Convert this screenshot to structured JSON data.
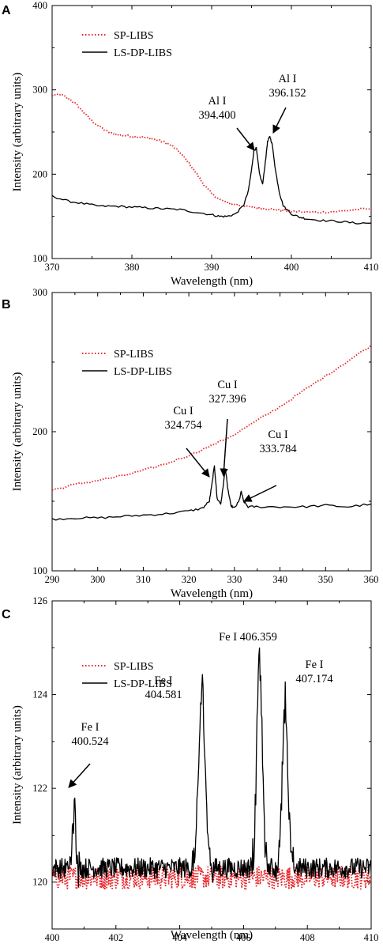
{
  "colors": {
    "sp": "#e8242a",
    "ls": "#000000"
  },
  "chart_data": [
    {
      "panel": "A",
      "type": "line",
      "xlabel": "Wavelength (nm)",
      "ylabel": "Intensity (arbitrary units)",
      "xlim": [
        370,
        410
      ],
      "ylim": [
        100,
        400
      ],
      "xticks": [
        370,
        380,
        390,
        400,
        410
      ],
      "yticks": [
        100,
        200,
        300,
        400
      ],
      "legend": "top-left",
      "series": [
        {
          "name": "SP-LIBS",
          "style": "dotted",
          "x": [
            370,
            371,
            372,
            373,
            374,
            375,
            376,
            377,
            378,
            379,
            380,
            381,
            382,
            383,
            384,
            385,
            386,
            387,
            388,
            389,
            390,
            391,
            392,
            393,
            394,
            395,
            396,
            397,
            398,
            399,
            400,
            402,
            404,
            406,
            408,
            410
          ],
          "y": [
            293,
            295,
            290,
            283,
            273,
            263,
            256,
            250,
            247,
            246,
            245,
            244,
            243,
            241,
            238,
            234,
            226,
            215,
            202,
            188,
            177,
            170,
            166,
            164,
            162,
            161,
            160,
            159,
            158,
            157,
            156,
            155,
            155,
            156,
            158,
            159
          ]
        },
        {
          "name": "LS-DP-LIBS",
          "style": "solid",
          "x": [
            370,
            372,
            374,
            376,
            378,
            380,
            382,
            384,
            386,
            388,
            390,
            391,
            392,
            393,
            394,
            394.6,
            395.0,
            395.3,
            395.6,
            396.0,
            396.4,
            396.8,
            397.0,
            397.3,
            397.6,
            398.0,
            398.5,
            399.0,
            400,
            401,
            402,
            404,
            406,
            408,
            410
          ],
          "y": [
            174,
            168,
            165,
            162,
            162,
            161,
            160,
            159,
            158,
            155,
            152,
            150,
            150,
            153,
            163,
            180,
            205,
            228,
            231,
            200,
            188,
            220,
            238,
            245,
            235,
            205,
            178,
            162,
            153,
            149,
            147,
            145,
            144,
            142,
            142
          ]
        }
      ],
      "annotations": [
        {
          "lines": [
            "Al I",
            "394.400"
          ]
        },
        {
          "lines": [
            "Al I",
            "396.152"
          ]
        }
      ]
    },
    {
      "panel": "B",
      "type": "line",
      "xlabel": "Wavelength (nm)",
      "ylabel": "Intensity (arbitrary units)",
      "xlim": [
        290,
        360
      ],
      "ylim": [
        100,
        300
      ],
      "xticks": [
        290,
        300,
        310,
        320,
        330,
        340,
        350,
        360
      ],
      "yticks": [
        100,
        200,
        300
      ],
      "legend": "top-left",
      "series": [
        {
          "name": "SP-LIBS",
          "style": "dotted",
          "x": [
            290,
            295,
            300,
            305,
            310,
            315,
            320,
            325,
            330,
            335,
            340,
            345,
            350,
            355,
            360
          ],
          "y": [
            158,
            162,
            165,
            168,
            172,
            177,
            183,
            190,
            198,
            208,
            218,
            229,
            240,
            251,
            262
          ]
        },
        {
          "name": "LS-DP-LIBS",
          "style": "solid",
          "x": [
            290,
            295,
            300,
            305,
            310,
            315,
            320,
            323,
            324.5,
            325.2,
            325.6,
            326.2,
            327.0,
            327.5,
            328.0,
            328.5,
            329.2,
            330,
            331,
            331.5,
            332,
            333,
            335,
            340,
            345,
            350,
            355,
            360
          ],
          "y": [
            137,
            138,
            138,
            139,
            140,
            141,
            143,
            145,
            150,
            165,
            176,
            152,
            148,
            160,
            174,
            160,
            147,
            145,
            150,
            157,
            150,
            146,
            146,
            146,
            146,
            147,
            146,
            148
          ]
        }
      ],
      "annotations": [
        {
          "lines": [
            "Cu I",
            "324.754"
          ]
        },
        {
          "lines": [
            "Cu I",
            "327.396"
          ]
        },
        {
          "lines": [
            "Cu I",
            "333.784"
          ]
        }
      ]
    },
    {
      "panel": "C",
      "type": "line",
      "xlabel": "Wavelength (nm)",
      "ylabel": "Intensity (arbitrary units)",
      "xlim": [
        400,
        410
      ],
      "ylim": [
        119,
        126
      ],
      "xticks": [
        400,
        402,
        404,
        406,
        408,
        410
      ],
      "yticks": [
        120,
        122,
        124,
        126
      ],
      "legend": "top-left",
      "series": [
        {
          "name": "SP-LIBS",
          "style": "dotted",
          "baseline": 120.1,
          "noise": 0.25
        },
        {
          "name": "LS-DP-LIBS",
          "style": "solid",
          "baseline": 120.3,
          "noise": 0.22,
          "peaks": [
            {
              "x": 400.7,
              "height": 1.2,
              "width": 0.08
            },
            {
              "x": 404.7,
              "height": 3.8,
              "width": 0.14
            },
            {
              "x": 406.5,
              "height": 4.4,
              "width": 0.12
            },
            {
              "x": 407.3,
              "height": 3.6,
              "width": 0.12
            }
          ]
        }
      ],
      "annotations": [
        {
          "lines": [
            "Fe I",
            "400.524"
          ]
        },
        {
          "lines": [
            "Fe I",
            "404.581"
          ]
        },
        {
          "lines": [
            "Fe I 406.359"
          ]
        },
        {
          "lines": [
            "Fe I",
            "407.174"
          ]
        }
      ]
    }
  ]
}
